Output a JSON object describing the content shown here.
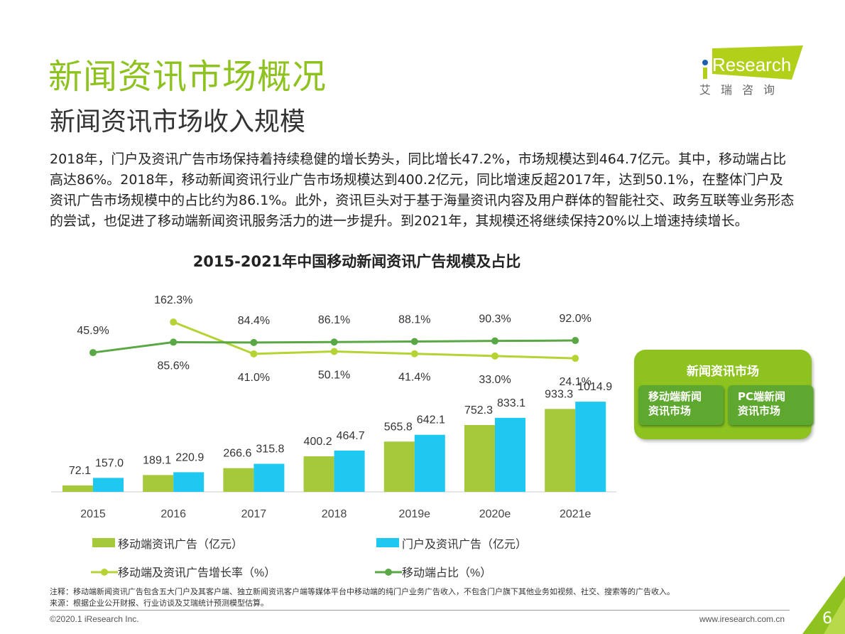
{
  "header": {
    "title": "新闻资讯市场概况",
    "subtitle": "新闻资讯市场收入规模"
  },
  "logo": {
    "brand": "iResearch",
    "cn": "艾 瑞 咨 询"
  },
  "paragraph": "2018年，门户及资讯广告市场保持着持续稳健的增长势头，同比增长47.2%，市场规模达到464.7亿元。其中，移动端占比高达86%。2018年，移动新闻资讯行业广告市场规模达到400.2亿元，同比增速反超2017年，达到50.1%，在整体门户及资讯广告市场规模中的占比约为86.1%。此外，资讯巨头对于基于海量资讯内容及用户群体的智能社交、政务互联等业务形态的尝试，也促进了移动端新闻资讯服务活力的进一步提升。到2021年，其规模还将继续保持20%以上增速持续增长。",
  "chart_data": {
    "type": "bar+line",
    "title": "2015-2021年中国移动新闻资讯广告规模及占比",
    "categories": [
      "2015",
      "2016",
      "2017",
      "2018",
      "2019e",
      "2020e",
      "2021e"
    ],
    "series": [
      {
        "name": "移动端资讯广告（亿元）",
        "type": "bar",
        "color": "#a5c93a",
        "values": [
          72.1,
          189.1,
          266.6,
          400.2,
          565.8,
          752.3,
          933.3
        ]
      },
      {
        "name": "门户及资讯广告（亿元）",
        "type": "bar",
        "color": "#1ec8f0",
        "values": [
          157.0,
          220.9,
          315.8,
          464.7,
          642.1,
          833.1,
          1014.9
        ]
      },
      {
        "name": "移动端及资讯广告增长率（%）",
        "type": "line",
        "color": "#b5d334",
        "values": [
          null,
          162.3,
          41.0,
          50.1,
          41.4,
          33.0,
          24.1
        ]
      },
      {
        "name": "移动端占比（%）",
        "type": "line",
        "color": "#5aa845",
        "values": [
          45.9,
          85.6,
          84.4,
          86.1,
          88.1,
          90.3,
          92.0
        ]
      }
    ],
    "legend": "bottom",
    "grid": false
  },
  "diagram": {
    "title": "新闻资讯市场",
    "items": [
      "移动端新闻\n资讯市场",
      "PC端新闻\n资讯市场"
    ]
  },
  "footer": {
    "note": "注释：移动端新闻资讯广告包含五大门户及其客户端、独立新闻资讯客户端等媒体平台中移动端的纯门户业务广告收入，不包含门户旗下其他业务如视频、社交、搜索等的广告收入。",
    "source": "来源：根据企业公开财报、行业访谈及艾瑞统计预测模型估算。",
    "copyright": "©2020.1 iResearch Inc.",
    "url": "www.iresearch.com.cn",
    "page": "6"
  }
}
